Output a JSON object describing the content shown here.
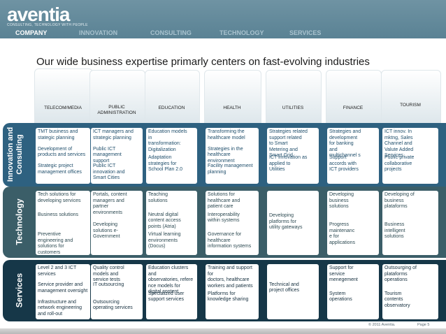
{
  "logo": {
    "text": "aventia",
    "subtitle": "CONSULTING, TECHNOLOGY WITH PEOPLE"
  },
  "nav": [
    "COMPANY",
    "INNOVATION",
    "CONSULTING",
    "TECHNOLOGY",
    "SERVICES"
  ],
  "title": "Our wide business expertise primarly centers on fast-evolving industries",
  "columns": [
    "TELECOM/MEDIA",
    "PUBLIC\nADMINISTRATION",
    "EDUCATION",
    "HEALTH",
    "UTILITIES",
    "FINANCE",
    "TOURISM"
  ],
  "rows": [
    {
      "label": "Innovation and\nConsulting",
      "cells": [
        [
          "TMT business and\nstategic planning",
          "Development of\nproducts and services",
          "Strategic project\nmanagement offices"
        ],
        [
          "ICT managers and\nstrategic planning",
          "Public ICT\nmanagement\nsupport",
          "Public ICT\ninnovation and\nSmart Cities"
        ],
        [
          "Education models\nin\ntransformation:\nDigitalization",
          "Adaptation\nstrategies  for\nSchool Plan 2.0"
        ],
        [
          "Transforming the\nhealthcare model",
          "Strategies in the\nhealthcare\nenvironment",
          "Facility management\nplanning"
        ],
        [
          "Strategies related\nsupport related\nto Smart\nMetering and\nSmart Grid",
          "ICT innovation as\napplied to\nUtilities"
        ],
        [
          "Strategies and\ndevelopment\nfor banking\nand\nmultichannel s",
          "Support\naccords with\nICT providers"
        ],
        [
          "ICT innov. In\nmktng, Sales\nChannel and\nValute Added\nServices",
          "Public-private\ncollaborative\nprojects"
        ]
      ]
    },
    {
      "label": "Technology",
      "cells": [
        [
          "Tech solutions for\ndeveloping services",
          "Business solutions",
          "Preventive\nengineering and\nsolutions for\ncustomers"
        ],
        [
          "Portals, content\nmanagers and\npartner\nenvironments",
          "Developing\nsolutions e-\nGovernment"
        ],
        [
          "Teaching\nsolutions",
          "Neutral digital\ncontent access\npoints (Atria)",
          "Virtual learning\nenvironments\n(Docus)"
        ],
        [
          "Solutions for\nhealthcare and\npatient care",
          "Interoperability\nwithin systems",
          "Governance for\nhealthcare\ninformation systems"
        ],
        [
          "Developing\nplatforms for\nutility gateways"
        ],
        [
          "Developing\nbusiness\nsolutions",
          "Progress\nmaintenanc\ne for\napplications"
        ],
        [
          "Developing of\nbusiness\nplataforms",
          "Business\nintelligent\nsolutions"
        ]
      ]
    },
    {
      "label": "Services",
      "cells": [
        [
          "Level 2 and 3 ICT\nservices",
          "Service provider and\nmanagement oversight",
          "Infrastructure and\nnetwork engineering\nand roll-out"
        ],
        [
          "Quality control\nmodels and\nservice tests",
          "IT outsourcing",
          "Outsourcing\noperating services"
        ],
        [
          "Education clusters\nand\nobservatories, refere\nnce models for\ndigital content",
          "Specialized user\nsupport services"
        ],
        [
          "Training and support\nfor\ndoctors, healthcare\nworkers and patients",
          "Platforms for\nknowledge sharing"
        ],
        [
          "Technical and\nproject offices"
        ],
        [
          "Support for\nservice\nmenegement",
          "System\noperations"
        ],
        [
          "Outsourging of\nplataforms\noperations",
          "Tourism\ncontents\nobservatory"
        ]
      ]
    }
  ],
  "footer": {
    "copyright": "© 2011 Aventia.",
    "page": "Page 5"
  }
}
